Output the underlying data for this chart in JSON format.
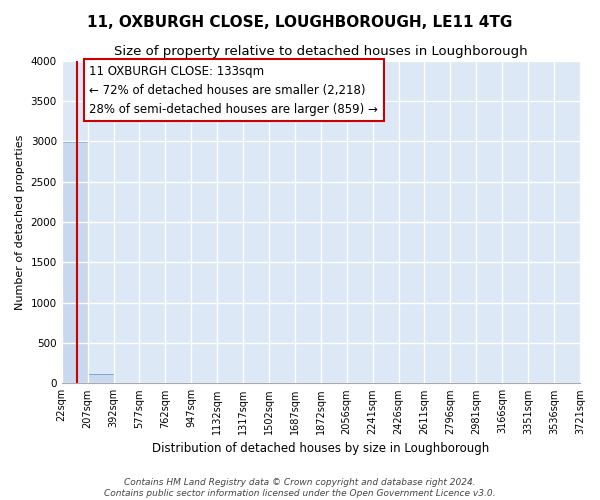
{
  "title": "11, OXBURGH CLOSE, LOUGHBOROUGH, LE11 4TG",
  "subtitle": "Size of property relative to detached houses in Loughborough",
  "xlabel": "Distribution of detached houses by size in Loughborough",
  "ylabel": "Number of detached properties",
  "footer_line1": "Contains HM Land Registry data © Crown copyright and database right 2024.",
  "footer_line2": "Contains public sector information licensed under the Open Government Licence v3.0.",
  "bin_edges": [
    22,
    207,
    392,
    577,
    762,
    947,
    1132,
    1317,
    1502,
    1687,
    1872,
    2056,
    2241,
    2426,
    2611,
    2796,
    2981,
    3166,
    3351,
    3536,
    3721
  ],
  "bar_heights": [
    2990,
    120,
    0,
    0,
    0,
    0,
    0,
    0,
    0,
    0,
    0,
    0,
    0,
    0,
    0,
    0,
    0,
    0,
    0,
    0
  ],
  "bar_color": "#c8d8ee",
  "bar_edge_color": "#7aaad0",
  "property_size": 133,
  "vline_color": "#cc0000",
  "annotation_line1": "11 OXBURGH CLOSE: 133sqm",
  "annotation_line2": "← 72% of detached houses are smaller (2,218)",
  "annotation_line3": "28% of semi-detached houses are larger (859) →",
  "annotation_box_color": "#ffffff",
  "annotation_box_edge_color": "#cc0000",
  "ylim": [
    0,
    4000
  ],
  "yticks": [
    0,
    500,
    1000,
    1500,
    2000,
    2500,
    3000,
    3500,
    4000
  ],
  "background_color": "#dce8f5",
  "plot_bg_color": "#dce8f5",
  "fig_bg_color": "#ffffff",
  "grid_color": "#ffffff",
  "title_fontsize": 11,
  "subtitle_fontsize": 9.5,
  "xlabel_fontsize": 8.5,
  "ylabel_fontsize": 8,
  "tick_fontsize": 7,
  "annot_fontsize": 8.5,
  "footer_fontsize": 6.5
}
